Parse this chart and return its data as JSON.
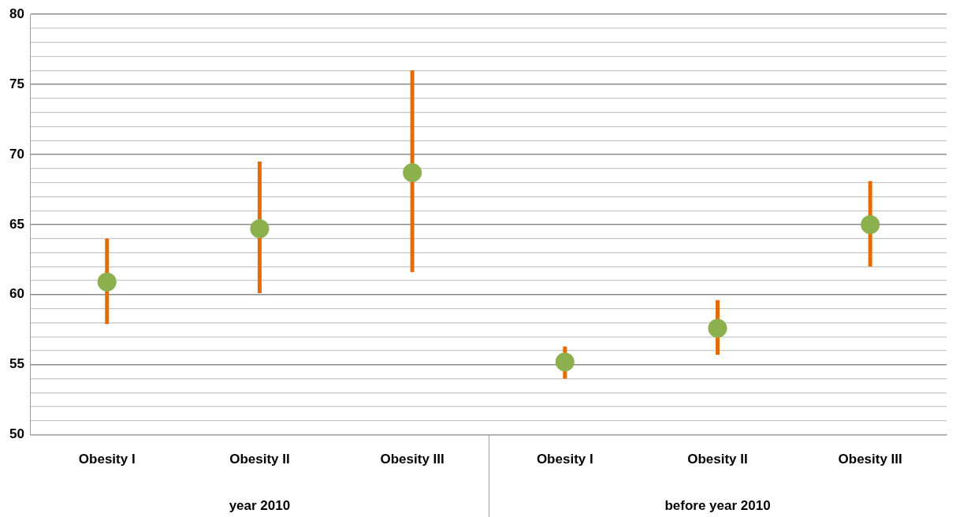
{
  "chart_data": {
    "type": "scatter",
    "categories": [
      "Obesity I",
      "Obesity II",
      "Obesity III",
      "Obesity I",
      "Obesity II",
      "Obesity III"
    ],
    "series": [
      {
        "color": "#8db04f",
        "values": [
          60.9,
          64.7,
          68.7,
          55.2,
          57.6,
          65.0
        ],
        "errors": [
          [
            57.9,
            64.0
          ],
          [
            60.1,
            69.5
          ],
          [
            61.6,
            76.0
          ],
          [
            54.0,
            56.3
          ],
          [
            55.7,
            59.6
          ],
          [
            62.0,
            68.1
          ]
        ]
      }
    ],
    "ylim": [
      50,
      80
    ],
    "yticks": [
      50,
      {
        "value": 51,
        "label": null
      },
      {
        "value": 52,
        "label": null
      },
      {
        "value": 53,
        "label": null
      },
      {
        "value": 54,
        "label": null
      },
      55,
      {
        "value": 56,
        "label": null
      },
      {
        "value": 57,
        "label": null
      },
      {
        "value": 58,
        "label": null
      },
      {
        "value": 59,
        "label": null
      },
      60,
      {
        "value": 61,
        "label": null
      },
      {
        "value": 62,
        "label": null
      },
      {
        "value": 63,
        "label": null
      },
      {
        "value": 64,
        "label": null
      },
      65,
      {
        "value": 66,
        "label": null
      },
      {
        "value": 67,
        "label": null
      },
      {
        "value": 68,
        "label": null
      },
      {
        "value": 69,
        "label": null
      },
      70,
      {
        "value": 71,
        "label": null
      },
      {
        "value": 72,
        "label": null
      },
      {
        "value": 73,
        "label": null
      },
      {
        "value": 74,
        "label": null
      },
      75,
      {
        "value": 76,
        "label": null
      },
      {
        "value": 77,
        "label": null
      },
      {
        "value": 78,
        "label": null
      },
      {
        "value": 79,
        "label": null
      },
      80
    ],
    "grid": "y",
    "legend": false,
    "marker": "circle",
    "annotations": [
      "year 2010",
      "before year 2010"
    ]
  }
}
